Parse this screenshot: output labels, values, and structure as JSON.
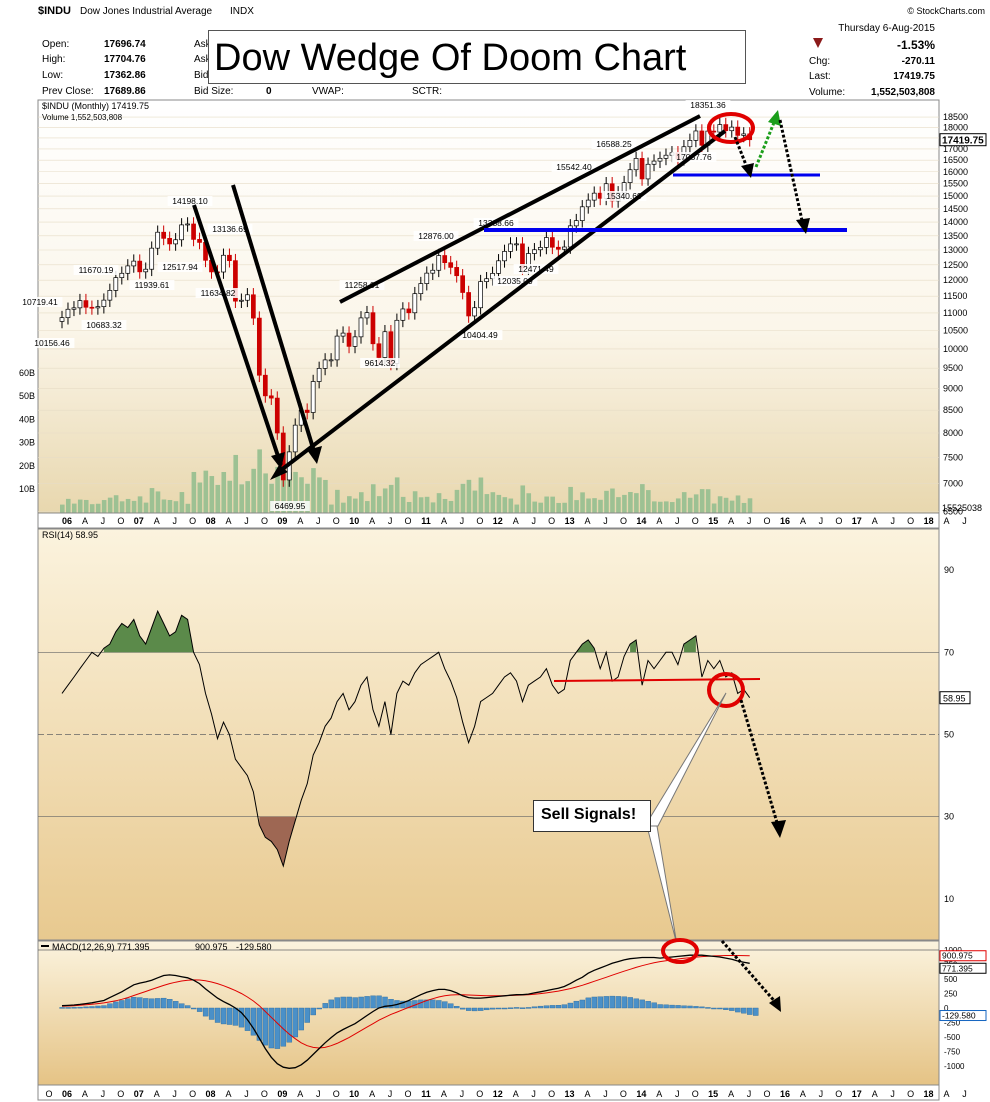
{
  "header": {
    "symbol": "$INDU",
    "name": "Dow Jones Industrial Average",
    "exchange": "INDX",
    "source": "© StockCharts.com",
    "date": "Thursday  6-Aug-2015"
  },
  "quote": {
    "open_label": "Open:",
    "open": "17696.74",
    "high_label": "High:",
    "high": "17704.76",
    "low_label": "Low:",
    "low": "17362.86",
    "prev_label": "Prev Close:",
    "prev": "17689.86",
    "ask_label": "Ask",
    "bid_label": "Bid",
    "bidsize_label": "Bid Size:",
    "bidsize": "0",
    "vwap_label": "VWAP:",
    "sctr_label": "SCTR:",
    "pct": "-1.53%",
    "chg_label": "Chg:",
    "chg": "-270.11",
    "last_label": "Last:",
    "last": "17419.75",
    "volume_label": "Volume:",
    "volume": "1,552,503,808"
  },
  "title": "Dow Wedge Of Doom Chart",
  "callout": "Sell Signals!",
  "colors": {
    "up": "#ffffff",
    "down": "#cc0000",
    "volume": "#9dc193",
    "price_bg_top": "#ffffff",
    "price_bg_bottom": "#e8d7ae",
    "panel_bg": "#f3e3bd",
    "trendline": "#000000",
    "support": "#0000ee",
    "rsi_over": "#5b8a4a",
    "rsi_under": "#9e6753",
    "macd_hist": "#4a90c8",
    "signal": "#e00000"
  },
  "chart_data": [
    {
      "type": "candlestick",
      "panel": "price",
      "legend": "$INDU (Monthly) 17419.75",
      "volume_legend": "Volume 1,552,503,808",
      "ylim": [
        6469.95,
        18600
      ],
      "y_scale": "log",
      "y_ticks": [
        18500,
        18000,
        17500,
        17000,
        16500,
        16000,
        15500,
        15000,
        14500,
        14000,
        13500,
        13000,
        12500,
        12000,
        11500,
        11000,
        10500,
        10000,
        9500,
        9000,
        8500,
        8000,
        7500,
        7000,
        6500
      ],
      "last_price_label": "17419.75",
      "volume_ticks": [
        "60B",
        "50B",
        "40B",
        "30B",
        "20B",
        "10B"
      ],
      "volume_axis_value": "15525038",
      "x_labels": [
        "06",
        "A",
        "J",
        "O",
        "07",
        "A",
        "J",
        "O",
        "08",
        "A",
        "J",
        "O",
        "09",
        "A",
        "J",
        "O",
        "10",
        "A",
        "J",
        "O",
        "11",
        "A",
        "J",
        "O",
        "12",
        "A",
        "J",
        "O",
        "13",
        "A",
        "J",
        "O",
        "14",
        "A",
        "J",
        "O",
        "15",
        "A",
        "J",
        "O",
        "16",
        "A",
        "J",
        "O",
        "17",
        "A",
        "J",
        "O",
        "18",
        "A",
        "J"
      ],
      "price_annotations": [
        "18351.36",
        "16588.25",
        "17037.76",
        "15542.40",
        "15340.69",
        "13338.66",
        "12035.09",
        "12471.49",
        "12876.00",
        "11258.01",
        "10404.49",
        "9614.32",
        "14198.10",
        "13136.69",
        "11634.82",
        "12517.94",
        "11939.61",
        "11670.19",
        "10683.32",
        "10719.41",
        "10156.46",
        "6469.95"
      ],
      "closes": [
        10864,
        11109,
        11151,
        11367,
        11168,
        11150,
        11186,
        11381,
        11679,
        12081,
        12221,
        12463,
        12622,
        12269,
        12354,
        13063,
        13628,
        13409,
        13212,
        13358,
        13896,
        13930,
        13372,
        13265,
        12650,
        12266,
        12263,
        12820,
        12638,
        11350,
        11378,
        11544,
        10851,
        9325,
        8829,
        8776,
        8000,
        7063,
        7609,
        8168,
        8500,
        8447,
        9171,
        9496,
        9712,
        9713,
        10345,
        10428,
        10067,
        10325,
        10857,
        11009,
        10137,
        9774,
        10466,
        9622,
        10788,
        11118,
        11006,
        11578,
        11892,
        12226,
        12320,
        12811,
        12570,
        12414,
        12143,
        11614,
        10913,
        11154,
        11955,
        12046,
        12218,
        12633,
        12952,
        13212,
        13214,
        12393,
        12880,
        13009,
        13091,
        13437,
        13096,
        13026,
        13104,
        13861,
        14054,
        14579,
        14840,
        15116,
        14910,
        15500,
        14810,
        15130,
        15546,
        16086,
        16577,
        15699,
        16321,
        16458,
        16580,
        16717,
        16827,
        16563,
        17098,
        17390,
        17828,
        17164,
        17823,
        17776,
        18133,
        17841,
        18011,
        17620,
        17690,
        17420
      ]
    },
    {
      "type": "line",
      "panel": "rsi",
      "legend": "RSI(14) 58.95",
      "ylim": [
        0,
        100
      ],
      "y_ticks": [
        90,
        70,
        50,
        30,
        10
      ],
      "last_label": "58.95",
      "series": [
        {
          "name": "RSI(14)",
          "values": [
            60,
            62,
            64,
            66,
            68,
            70,
            69,
            71,
            72,
            75,
            77,
            76,
            78,
            74,
            72,
            76,
            80,
            77,
            74,
            75,
            79,
            78,
            70,
            67,
            60,
            55,
            49,
            53,
            50,
            44,
            42,
            40,
            36,
            28,
            25,
            24,
            22,
            18,
            24,
            29,
            34,
            38,
            45,
            48,
            52,
            54,
            58,
            60,
            56,
            58,
            62,
            64,
            56,
            52,
            58,
            50,
            60,
            63,
            62,
            65,
            67,
            68,
            69,
            70,
            66,
            63,
            59,
            53,
            48,
            52,
            58,
            59,
            60,
            62,
            64,
            65,
            63,
            58,
            62,
            63,
            64,
            66,
            62,
            60,
            61,
            68,
            70,
            72,
            73,
            71,
            66,
            70,
            63,
            64,
            69,
            72,
            73,
            62,
            68,
            66,
            68,
            70,
            70,
            67,
            72,
            73,
            74,
            64,
            68,
            66,
            68,
            64,
            65,
            60,
            61,
            58.95
          ]
        }
      ]
    },
    {
      "type": "line",
      "panel": "macd",
      "legend": [
        "MACD(12,26,9) 771.395",
        "900.975",
        "-129.580"
      ],
      "y_ticks": [
        "1000",
        "750",
        "500",
        "250",
        "0",
        "-250",
        "-500",
        "-750",
        "-1000"
      ],
      "axis_values": [
        "900.975",
        "771.395",
        "-129.580"
      ],
      "x_labels": [
        "O",
        "06",
        "A",
        "J",
        "O",
        "07",
        "A",
        "J",
        "O",
        "08",
        "A",
        "J",
        "O",
        "09",
        "A",
        "J",
        "O",
        "10",
        "A",
        "J",
        "O",
        "11",
        "A",
        "J",
        "O",
        "12",
        "A",
        "J",
        "O",
        "13",
        "A",
        "J",
        "O",
        "14",
        "A",
        "J",
        "O",
        "15",
        "A",
        "J",
        "O",
        "16",
        "A",
        "J",
        "O",
        "17",
        "A",
        "J",
        "O",
        "18",
        "A",
        "J"
      ],
      "series": [
        {
          "name": "MACD(12,26,9)",
          "values": [
            40,
            45,
            52,
            62,
            75,
            90,
            110,
            130,
            180,
            230,
            280,
            340,
            400,
            430,
            450,
            480,
            520,
            560,
            570,
            560,
            540,
            520,
            480,
            420,
            330,
            250,
            170,
            110,
            60,
            0,
            -80,
            -200,
            -350,
            -520,
            -700,
            -850,
            -960,
            -1020,
            -1040,
            -1030,
            -980,
            -900,
            -800,
            -700,
            -600,
            -510,
            -430,
            -370,
            -320,
            -270,
            -200,
            -130,
            -60,
            0,
            30,
            40,
            60,
            90,
            130,
            180,
            230,
            270,
            300,
            320,
            320,
            300,
            260,
            210,
            180,
            170,
            170,
            180,
            190,
            200,
            210,
            220,
            230,
            230,
            240,
            260,
            280,
            300,
            320,
            340,
            370,
            420,
            480,
            530,
            600,
            650,
            690,
            730,
            770,
            800,
            830,
            850,
            860,
            870,
            870,
            870,
            860,
            870,
            880,
            890,
            900,
            910,
            910,
            910,
            900,
            890,
            880,
            860,
            840,
            810,
            790,
            771.395
          ]
        },
        {
          "name": "Signal",
          "values": [
            30,
            35,
            40,
            47,
            55,
            64,
            75,
            88,
            105,
            125,
            150,
            180,
            215,
            250,
            285,
            320,
            355,
            390,
            420,
            445,
            465,
            478,
            485,
            482,
            470,
            448,
            420,
            385,
            345,
            300,
            250,
            190,
            120,
            40,
            -60,
            -160,
            -260,
            -360,
            -450,
            -530,
            -600,
            -650,
            -680,
            -690,
            -680,
            -650,
            -610,
            -560,
            -510,
            -450,
            -390,
            -330,
            -270,
            -210,
            -160,
            -110,
            -70,
            -30,
            10,
            50,
            90,
            130,
            160,
            190,
            210,
            225,
            230,
            230,
            225,
            220,
            215,
            212,
            210,
            210,
            212,
            215,
            220,
            225,
            230,
            238,
            248,
            260,
            275,
            292,
            312,
            335,
            362,
            392,
            425,
            460,
            495,
            530,
            565,
            600,
            635,
            668,
            700,
            730,
            755,
            780,
            800,
            815,
            830,
            845,
            858,
            868,
            878,
            886,
            893,
            898,
            902,
            905,
            906,
            905,
            903,
            900.975
          ]
        }
      ],
      "histogram": [
        10,
        10,
        12,
        15,
        20,
        26,
        35,
        42,
        75,
        105,
        130,
        160,
        185,
        180,
        165,
        160,
        165,
        170,
        150,
        115,
        75,
        42,
        -5,
        -62,
        -140,
        -198,
        -250,
        -275,
        -285,
        -300,
        -330,
        -390,
        -470,
        -560,
        -640,
        -690,
        -700,
        -660,
        -590,
        -500,
        -380,
        -250,
        -120,
        -10,
        80,
        140,
        180,
        190,
        190,
        180,
        190,
        200,
        210,
        210,
        190,
        150,
        130,
        120,
        120,
        130,
        140,
        140,
        140,
        130,
        110,
        75,
        30,
        -20,
        -45,
        -50,
        -45,
        -32,
        -20,
        -10,
        -2,
        5,
        10,
        5,
        10,
        22,
        32,
        40,
        45,
        48,
        58,
        85,
        118,
        138,
        175,
        190,
        195,
        200,
        205,
        200,
        195,
        182,
        160,
        140,
        115,
        90,
        60,
        55,
        50,
        45,
        38,
        35,
        28,
        20,
        10,
        0,
        -15,
        -30,
        -45,
        -70,
        -90,
        -113,
        -129.58
      ]
    }
  ]
}
